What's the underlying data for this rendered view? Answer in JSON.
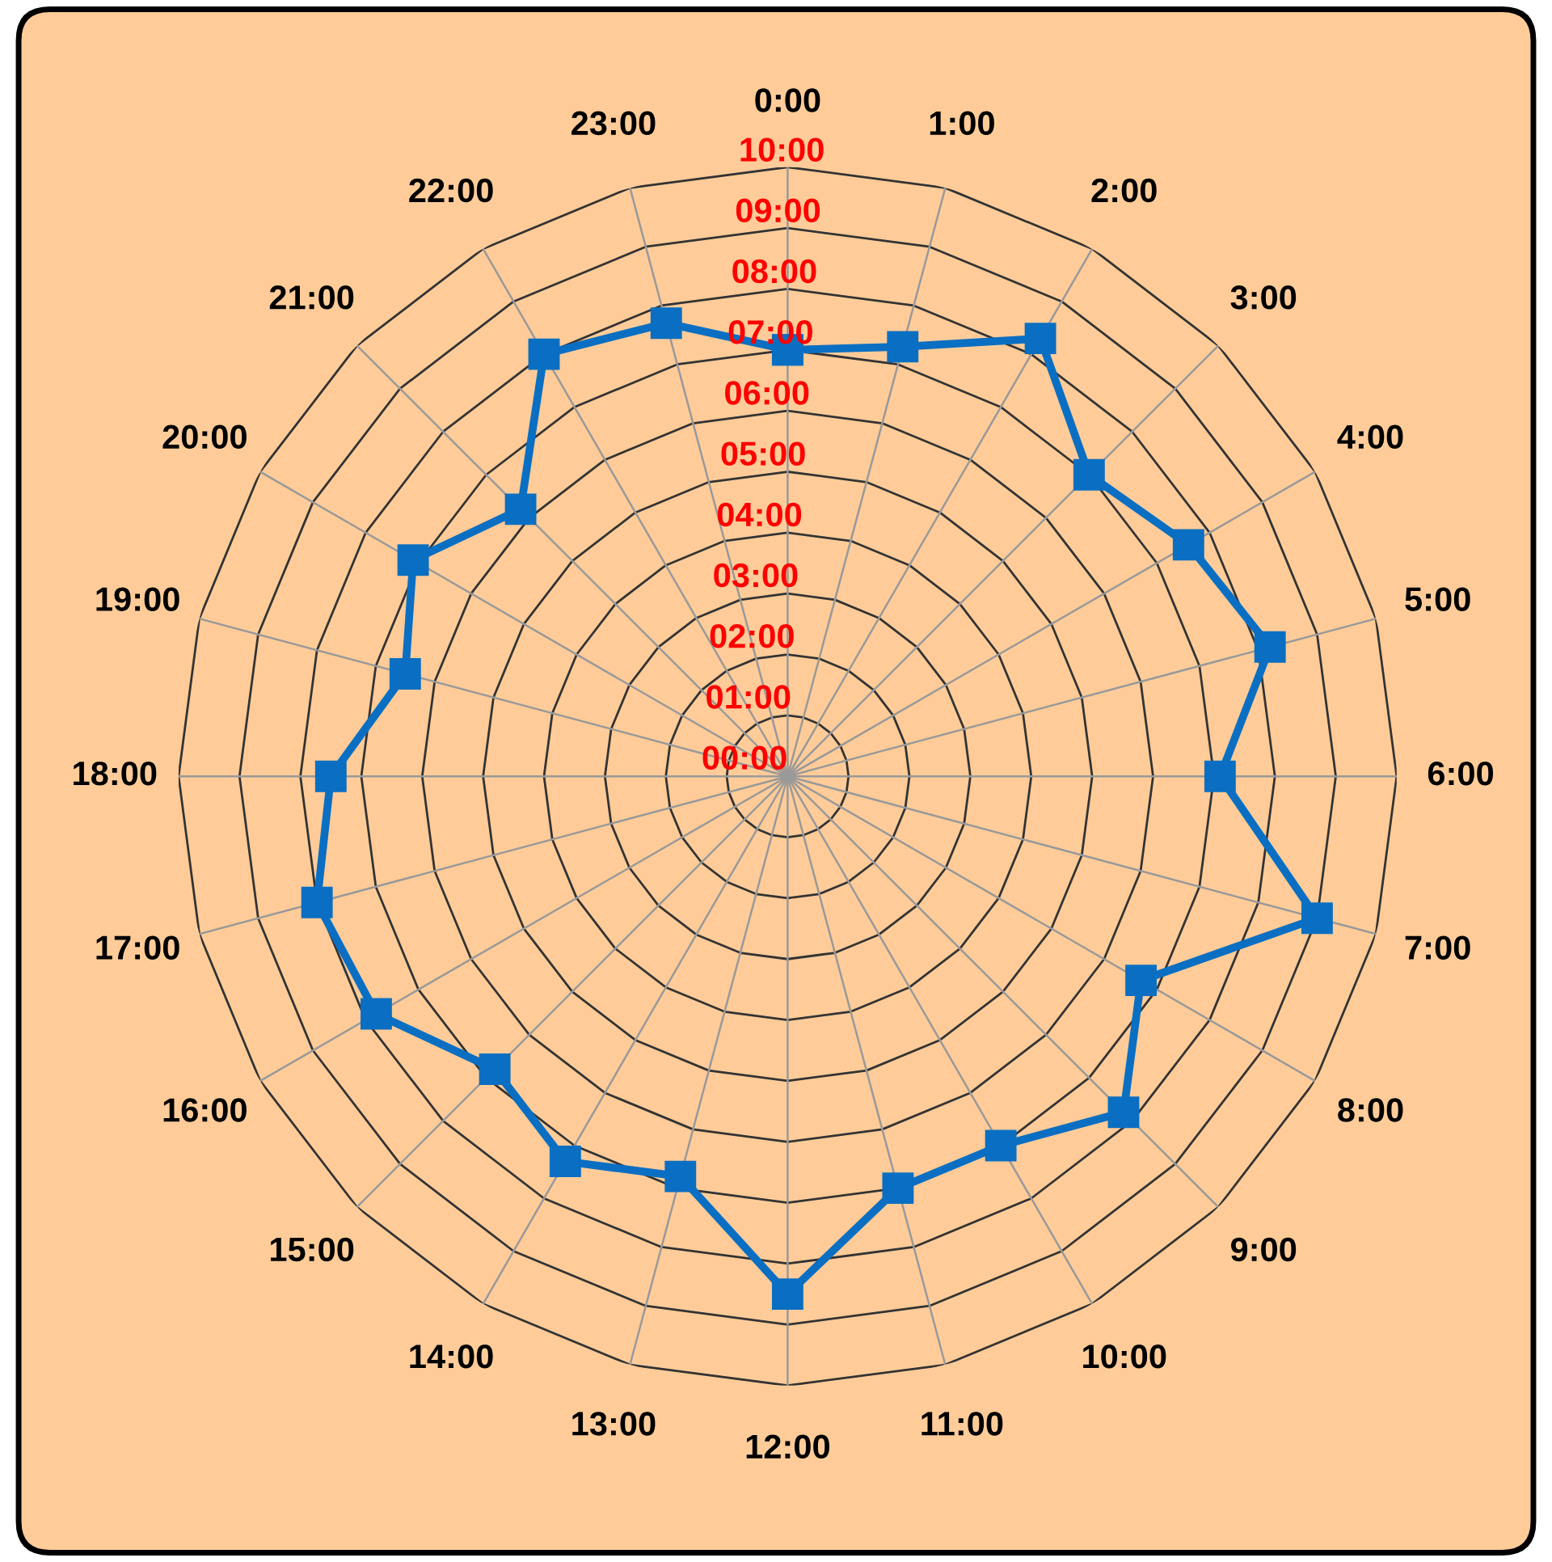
{
  "chart_data": {
    "type": "radar",
    "categories": [
      "0:00",
      "1:00",
      "2:00",
      "3:00",
      "4:00",
      "5:00",
      "6:00",
      "7:00",
      "8:00",
      "9:00",
      "10:00",
      "11:00",
      "12:00",
      "13:00",
      "14:00",
      "15:00",
      "16:00",
      "17:00",
      "18:00",
      "19:00",
      "20:00",
      "21:00",
      "22:00",
      "23:00"
    ],
    "series": [
      {
        "color": "#0a6fc2",
        "values": [
          7.0,
          7.3,
          8.3,
          7.0,
          7.6,
          8.2,
          7.1,
          9.0,
          6.7,
          7.8,
          7.0,
          7.0,
          8.5,
          6.8,
          7.3,
          6.8,
          7.8,
          8.0,
          7.5,
          6.5,
          7.1,
          6.2,
          8.0,
          7.7
        ]
      }
    ],
    "ylim": [
      0,
      10
    ],
    "yticks": [
      {
        "value": 0,
        "label": "00:00"
      },
      {
        "value": 1,
        "label": "01:00"
      },
      {
        "value": 2,
        "label": "02:00"
      },
      {
        "value": 3,
        "label": "03:00"
      },
      {
        "value": 4,
        "label": "04:00"
      },
      {
        "value": 5,
        "label": "05:00"
      },
      {
        "value": 6,
        "label": "06:00"
      },
      {
        "value": 7,
        "label": "07:00"
      },
      {
        "value": 8,
        "label": "08:00"
      },
      {
        "value": 9,
        "label": "09:00"
      },
      {
        "value": 10,
        "label": "10:00"
      }
    ],
    "grid": true,
    "marker": "square",
    "line_style": "solid"
  }
}
